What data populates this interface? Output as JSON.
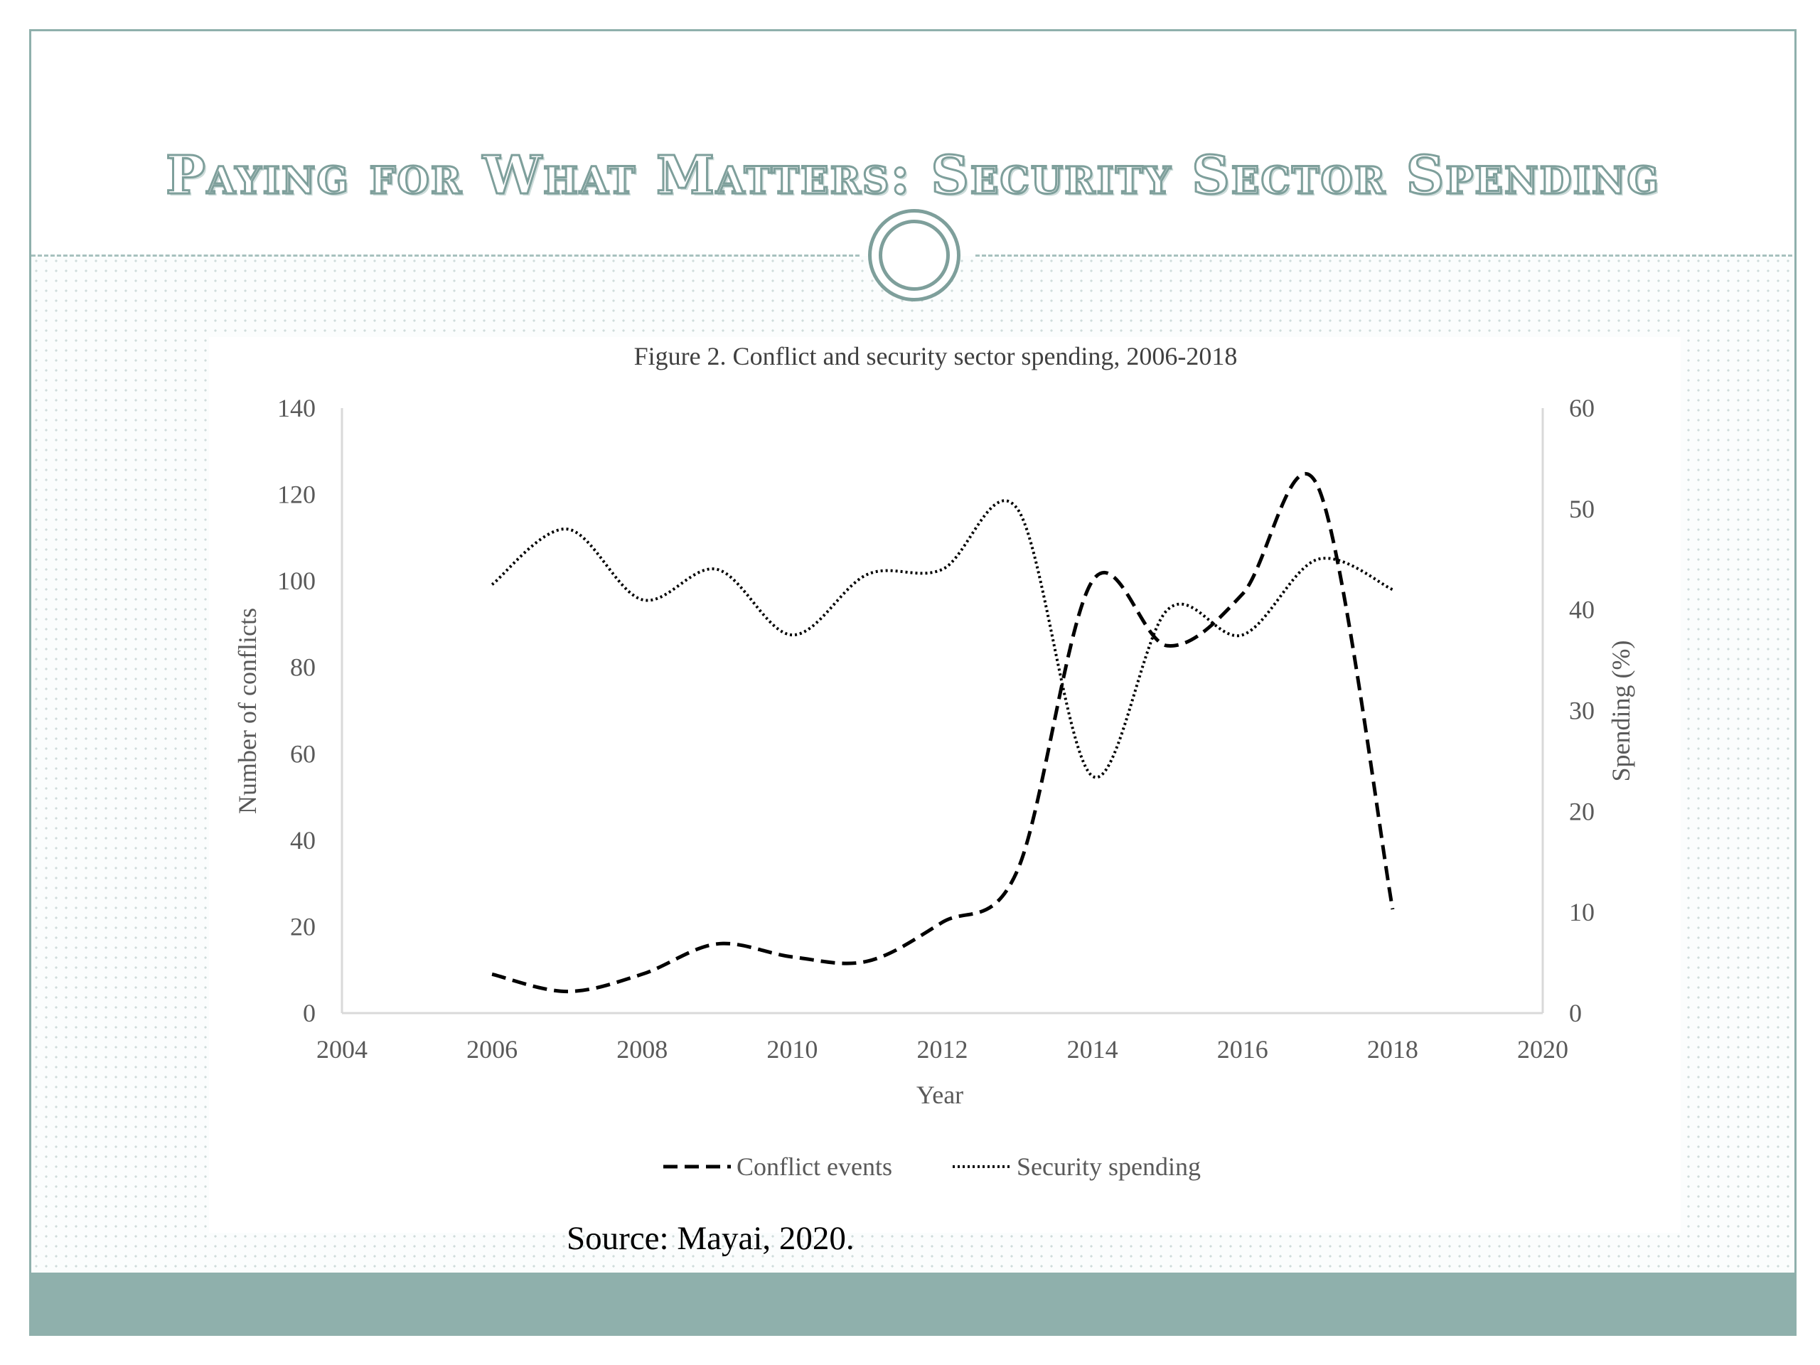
{
  "slide": {
    "title": "Paying for What Matters: Security Sector Spending",
    "source": "Source: Mayai, 2020."
  },
  "colors": {
    "accent": "#7e9f9b",
    "footer": "#8fb0ac",
    "series": "#000000",
    "axis_text": "#595959"
  },
  "chart_data": {
    "type": "line",
    "title": "Figure 2. Conflict and security sector spending, 2006-2018",
    "xlabel": "Year",
    "ylabel": "Number of conflicts",
    "y2label": "Spending (%)",
    "xlim": [
      2004,
      2020
    ],
    "ylim": [
      0,
      140
    ],
    "y2lim": [
      0,
      60
    ],
    "x_ticks": [
      "2004",
      "2006",
      "2008",
      "2010",
      "2012",
      "2014",
      "2016",
      "2018",
      "2020"
    ],
    "y_ticks": [
      "0",
      "20",
      "40",
      "60",
      "80",
      "100",
      "120",
      "140"
    ],
    "y2_ticks": [
      "0",
      "10",
      "20",
      "30",
      "40",
      "50",
      "60"
    ],
    "grid": false,
    "legend_position": "bottom",
    "series": [
      {
        "name": "Conflict events",
        "axis": "left",
        "style": "dashed",
        "x": [
          2006,
          2007,
          2008,
          2009,
          2010,
          2011,
          2012,
          2013,
          2014,
          2015,
          2016,
          2017,
          2018
        ],
        "y": [
          9,
          5,
          9,
          16,
          13,
          12,
          21,
          33,
          100,
          85,
          97,
          122,
          24
        ]
      },
      {
        "name": "Security spending",
        "axis": "right",
        "style": "dotted",
        "x": [
          2006,
          2007,
          2008,
          2009,
          2010,
          2011,
          2012,
          2013,
          2014,
          2015,
          2016,
          2017,
          2018
        ],
        "y": [
          42.5,
          48,
          41,
          44,
          37.5,
          43.5,
          44,
          50,
          23.5,
          40,
          37.5,
          45,
          42
        ]
      }
    ]
  }
}
